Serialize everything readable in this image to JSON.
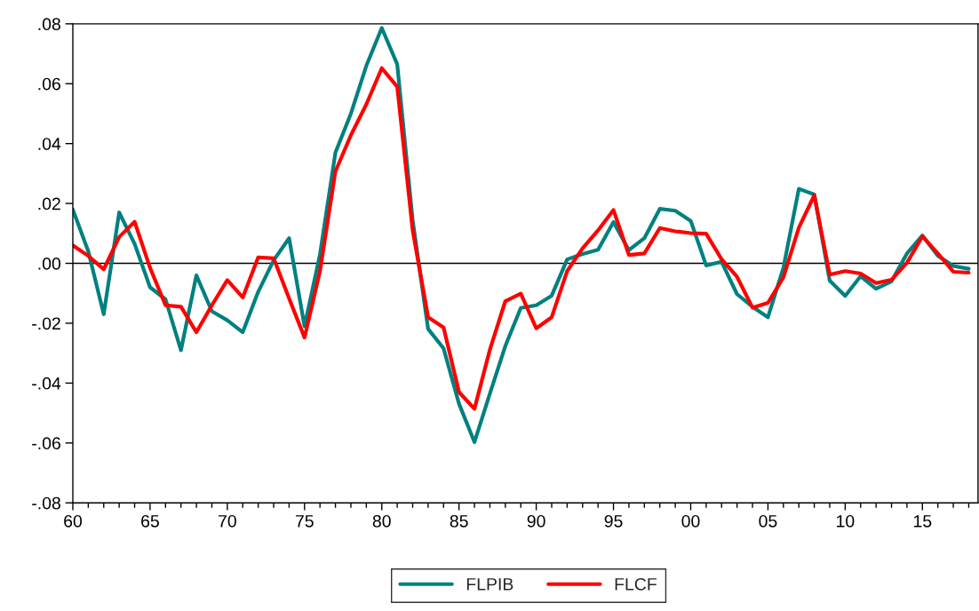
{
  "chart_data": {
    "type": "line",
    "x": [
      1960,
      1961,
      1962,
      1963,
      1964,
      1965,
      1966,
      1967,
      1968,
      1969,
      1970,
      1971,
      1972,
      1973,
      1974,
      1975,
      1976,
      1977,
      1978,
      1979,
      1980,
      1981,
      1982,
      1983,
      1984,
      1985,
      1986,
      1987,
      1988,
      1989,
      1990,
      1991,
      1992,
      1993,
      1994,
      1995,
      1996,
      1997,
      1998,
      1999,
      2000,
      2001,
      2002,
      2003,
      2004,
      2005,
      2006,
      2007,
      2008,
      2009,
      2010,
      2011,
      2012,
      2013,
      2014,
      2015,
      2016,
      2017,
      2018
    ],
    "series": [
      {
        "name": "FLPIB",
        "color": "#008080",
        "values": [
          0.018,
          0.004,
          -0.017,
          0.017,
          0.0065,
          -0.008,
          -0.012,
          -0.029,
          -0.004,
          -0.016,
          -0.019,
          -0.023,
          -0.0095,
          0.001,
          0.0084,
          -0.021,
          0.003,
          0.037,
          0.05,
          0.066,
          0.0786,
          0.0665,
          0.0144,
          -0.0219,
          -0.0284,
          -0.0469,
          -0.0597,
          -0.0435,
          -0.0276,
          -0.0149,
          -0.014,
          -0.0108,
          0.0013,
          0.0031,
          0.0045,
          0.0138,
          0.0044,
          0.0084,
          0.0182,
          0.0176,
          0.0142,
          -0.0007,
          0.0005,
          -0.0103,
          -0.0145,
          -0.018,
          -0.0015,
          0.0249,
          0.023,
          -0.0058,
          -0.0109,
          -0.0043,
          -0.0085,
          -0.006,
          0.0033,
          0.0093,
          0.0025,
          -0.0009,
          -0.0018
        ]
      },
      {
        "name": "FLCF",
        "color": "#ff0000",
        "values": [
          0.006,
          0.0025,
          -0.002,
          0.0088,
          0.0139,
          -0.0015,
          -0.014,
          -0.0145,
          -0.023,
          -0.014,
          -0.0056,
          -0.0114,
          0.002,
          0.0017,
          -0.0117,
          -0.0248,
          -0.0026,
          0.0307,
          0.0428,
          0.0531,
          0.0652,
          0.059,
          0.011,
          -0.018,
          -0.0214,
          -0.043,
          -0.0486,
          -0.0288,
          -0.0126,
          -0.0101,
          -0.0217,
          -0.018,
          -0.0026,
          0.005,
          0.011,
          0.0178,
          0.0028,
          0.0033,
          0.0118,
          0.0107,
          0.0101,
          0.0099,
          0.0014,
          -0.0045,
          -0.0148,
          -0.0132,
          -0.0047,
          0.0119,
          0.0227,
          -0.0038,
          -0.0026,
          -0.0034,
          -0.0066,
          -0.0055,
          0.0002,
          0.009,
          0.0033,
          -0.0028,
          -0.0031
        ]
      }
    ],
    "xlim": [
      1960,
      2018.6
    ],
    "xticks": [
      {
        "value": 1960,
        "label": "60"
      },
      {
        "value": 1961,
        "label": null
      },
      {
        "value": 1962,
        "label": null
      },
      {
        "value": 1963,
        "label": null
      },
      {
        "value": 1964,
        "label": null
      },
      {
        "value": 1965,
        "label": "65"
      },
      {
        "value": 1966,
        "label": null
      },
      {
        "value": 1967,
        "label": null
      },
      {
        "value": 1968,
        "label": null
      },
      {
        "value": 1969,
        "label": null
      },
      {
        "value": 1970,
        "label": "70"
      },
      {
        "value": 1971,
        "label": null
      },
      {
        "value": 1972,
        "label": null
      },
      {
        "value": 1973,
        "label": null
      },
      {
        "value": 1974,
        "label": null
      },
      {
        "value": 1975,
        "label": "75"
      },
      {
        "value": 1976,
        "label": null
      },
      {
        "value": 1977,
        "label": null
      },
      {
        "value": 1978,
        "label": null
      },
      {
        "value": 1979,
        "label": null
      },
      {
        "value": 1980,
        "label": "80"
      },
      {
        "value": 1981,
        "label": null
      },
      {
        "value": 1982,
        "label": null
      },
      {
        "value": 1983,
        "label": null
      },
      {
        "value": 1984,
        "label": null
      },
      {
        "value": 1985,
        "label": "85"
      },
      {
        "value": 1986,
        "label": null
      },
      {
        "value": 1987,
        "label": null
      },
      {
        "value": 1988,
        "label": null
      },
      {
        "value": 1989,
        "label": null
      },
      {
        "value": 1990,
        "label": "90"
      },
      {
        "value": 1991,
        "label": null
      },
      {
        "value": 1992,
        "label": null
      },
      {
        "value": 1993,
        "label": null
      },
      {
        "value": 1994,
        "label": null
      },
      {
        "value": 1995,
        "label": "95"
      },
      {
        "value": 1996,
        "label": null
      },
      {
        "value": 1997,
        "label": null
      },
      {
        "value": 1998,
        "label": null
      },
      {
        "value": 1999,
        "label": null
      },
      {
        "value": 2000,
        "label": "00"
      },
      {
        "value": 2001,
        "label": null
      },
      {
        "value": 2002,
        "label": null
      },
      {
        "value": 2003,
        "label": null
      },
      {
        "value": 2004,
        "label": null
      },
      {
        "value": 2005,
        "label": "05"
      },
      {
        "value": 2006,
        "label": null
      },
      {
        "value": 2007,
        "label": null
      },
      {
        "value": 2008,
        "label": null
      },
      {
        "value": 2009,
        "label": null
      },
      {
        "value": 2010,
        "label": "10"
      },
      {
        "value": 2011,
        "label": null
      },
      {
        "value": 2012,
        "label": null
      },
      {
        "value": 2013,
        "label": null
      },
      {
        "value": 2014,
        "label": null
      },
      {
        "value": 2015,
        "label": "15"
      },
      {
        "value": 2016,
        "label": null
      },
      {
        "value": 2017,
        "label": null
      },
      {
        "value": 2018,
        "label": null
      }
    ],
    "ylim": [
      -0.08,
      0.08
    ],
    "yticks": [
      {
        "value": -0.08,
        "label": "-.08"
      },
      {
        "value": -0.06,
        "label": "-.06"
      },
      {
        "value": -0.04,
        "label": "-.04"
      },
      {
        "value": -0.02,
        "label": "-.02"
      },
      {
        "value": 0,
        "label": ".00"
      },
      {
        "value": 0.02,
        "label": ".02"
      },
      {
        "value": 0.04,
        "label": ".04"
      },
      {
        "value": 0.06,
        "label": ".06"
      },
      {
        "value": 0.08,
        "label": ".08"
      }
    ],
    "ref_lines": [
      {
        "axis": "y",
        "value": 0,
        "color": "#000000",
        "line_style": "solid"
      }
    ],
    "grid": false,
    "legend": "bottom",
    "line_style": "solid",
    "marker": "none"
  }
}
